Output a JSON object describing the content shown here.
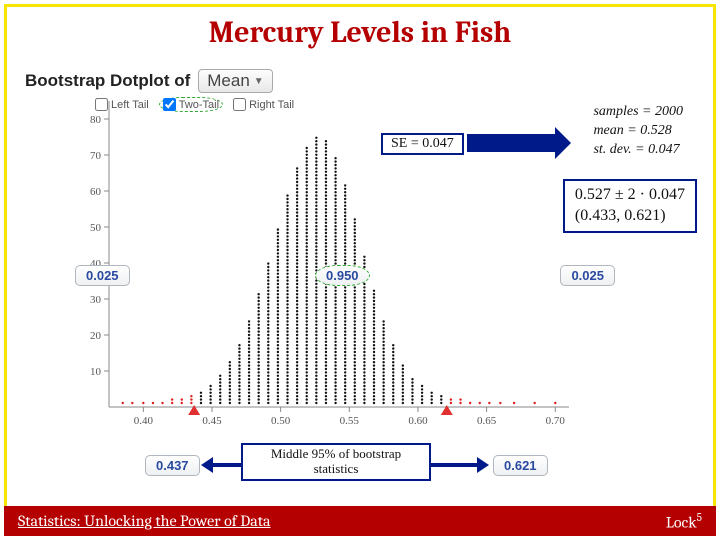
{
  "title": {
    "text": "Mercury Levels in Fish",
    "fontsize": 30,
    "color": "#b40000"
  },
  "chart_header": {
    "prefix": "Bootstrap Dotplot of",
    "dropdown_value": "Mean",
    "fontsize": 17
  },
  "tails": {
    "left": {
      "label": "Left Tail",
      "checked": false
    },
    "two": {
      "label": "Two-Tail",
      "checked": true,
      "circled": true
    },
    "right": {
      "label": "Right Tail",
      "checked": false
    },
    "fontsize": 11
  },
  "stats": {
    "samples_label": "samples =",
    "samples": "2000",
    "mean_label": "mean =",
    "mean": "0.528",
    "sd_label": "st. dev. =",
    "sd": "0.047",
    "fontsize": 14
  },
  "se_badge": {
    "text": "SE = 0.047",
    "fontsize": 14
  },
  "ci_box": {
    "line1": "0.527 ± 2 · 0.047",
    "line2": "(0.433, 0.621)",
    "fontsize": 16
  },
  "pills": {
    "left_tail": "0.025",
    "middle": "0.950",
    "right_tail": "0.025",
    "lower_bound": "0.437",
    "upper_bound": "0.621",
    "fontsize": 13,
    "pill_text_color": "#2a4aa0"
  },
  "mid_label": {
    "line1": "Middle 95% of bootstrap",
    "line2": "statistics",
    "fontsize": 13
  },
  "footer": {
    "left": "Statistics: Unlocking the Power of Data",
    "right_base": "Lock",
    "right_sup": "5",
    "fontsize": 16,
    "bg": "#b40000"
  },
  "dotplot": {
    "type": "dotplot",
    "xlim": [
      0.375,
      0.71
    ],
    "ylim": [
      0,
      85
    ],
    "xticks": [
      0.4,
      0.45,
      0.5,
      0.55,
      0.6,
      0.65,
      0.7
    ],
    "yticks": [
      10,
      20,
      30,
      40,
      50,
      60,
      70,
      80
    ],
    "tick_fontsize": 11,
    "tick_color": "#555555",
    "grid": false,
    "background_color": "#ffffff",
    "dot_radius": 1.2,
    "dot_spacing_y": 3.4,
    "middle_color": "#111111",
    "tail_color": "#e01b1b",
    "cut_low": 0.437,
    "cut_high": 0.621,
    "marker_color": "#e03030",
    "columns": [
      {
        "x": 0.385,
        "n": 1
      },
      {
        "x": 0.392,
        "n": 1
      },
      {
        "x": 0.4,
        "n": 1
      },
      {
        "x": 0.407,
        "n": 1
      },
      {
        "x": 0.414,
        "n": 1
      },
      {
        "x": 0.421,
        "n": 2
      },
      {
        "x": 0.428,
        "n": 2
      },
      {
        "x": 0.435,
        "n": 3
      },
      {
        "x": 0.442,
        "n": 4
      },
      {
        "x": 0.449,
        "n": 6
      },
      {
        "x": 0.456,
        "n": 9
      },
      {
        "x": 0.463,
        "n": 13
      },
      {
        "x": 0.47,
        "n": 18
      },
      {
        "x": 0.477,
        "n": 25
      },
      {
        "x": 0.484,
        "n": 33
      },
      {
        "x": 0.491,
        "n": 42
      },
      {
        "x": 0.498,
        "n": 52
      },
      {
        "x": 0.505,
        "n": 62
      },
      {
        "x": 0.512,
        "n": 70
      },
      {
        "x": 0.519,
        "n": 76
      },
      {
        "x": 0.526,
        "n": 79
      },
      {
        "x": 0.533,
        "n": 78
      },
      {
        "x": 0.54,
        "n": 73
      },
      {
        "x": 0.547,
        "n": 65
      },
      {
        "x": 0.554,
        "n": 55
      },
      {
        "x": 0.561,
        "n": 44
      },
      {
        "x": 0.568,
        "n": 34
      },
      {
        "x": 0.575,
        "n": 25
      },
      {
        "x": 0.582,
        "n": 18
      },
      {
        "x": 0.589,
        "n": 12
      },
      {
        "x": 0.596,
        "n": 8
      },
      {
        "x": 0.603,
        "n": 6
      },
      {
        "x": 0.61,
        "n": 4
      },
      {
        "x": 0.617,
        "n": 3
      },
      {
        "x": 0.624,
        "n": 2
      },
      {
        "x": 0.631,
        "n": 2
      },
      {
        "x": 0.638,
        "n": 1
      },
      {
        "x": 0.645,
        "n": 1
      },
      {
        "x": 0.652,
        "n": 1
      },
      {
        "x": 0.66,
        "n": 1
      },
      {
        "x": 0.67,
        "n": 1
      },
      {
        "x": 0.685,
        "n": 1
      },
      {
        "x": 0.7,
        "n": 1
      }
    ]
  }
}
